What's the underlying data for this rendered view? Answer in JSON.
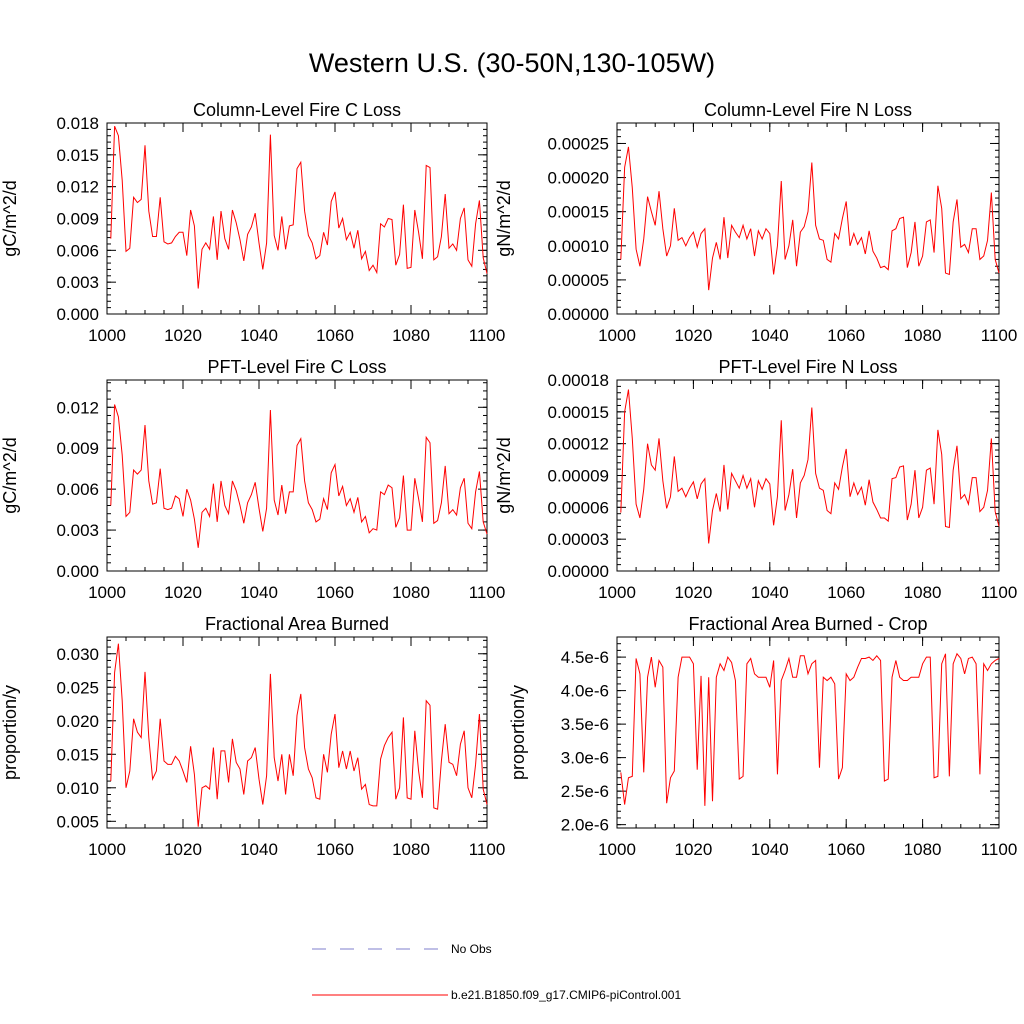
{
  "title": "Western U.S. (30-50N,130-105W)",
  "colors": {
    "model": "#ff0000",
    "obs": "#7f7fcc"
  },
  "legend": {
    "obs_label": "No Obs",
    "model_label": "b.e21.B1850.f09_g17.CMIP6-piControl.001"
  },
  "chart_data": [
    {
      "type": "line",
      "title": "Column-Level Fire C Loss",
      "ylabel": "gC/m^2/d",
      "xlim": [
        1000,
        1100
      ],
      "ylim": [
        0,
        0.018
      ],
      "xticks": [
        1000,
        1020,
        1040,
        1060,
        1080,
        1100
      ],
      "xtick_labels": [
        "1000",
        "1020",
        "1040",
        "1060",
        "1080",
        "1100"
      ],
      "yticks": [
        0,
        0.003,
        0.006,
        0.009,
        0.012,
        0.015,
        0.018
      ],
      "ytick_labels": [
        "0.000",
        "0.003",
        "0.006",
        "0.009",
        "0.012",
        "0.015",
        "0.018"
      ],
      "series": [
        {
          "x_start": 1001,
          "values": [
            0.0071,
            0.0177,
            0.0168,
            0.0126,
            0.0059,
            0.0062,
            0.011,
            0.0105,
            0.0108,
            0.0159,
            0.0097,
            0.0073,
            0.0073,
            0.011,
            0.0068,
            0.0066,
            0.0067,
            0.0073,
            0.0077,
            0.0077,
            0.0055,
            0.0098,
            0.0083,
            0.0024,
            0.0061,
            0.0067,
            0.0061,
            0.0092,
            0.0051,
            0.0097,
            0.0071,
            0.0061,
            0.0098,
            0.0086,
            0.007,
            0.005,
            0.0075,
            0.0082,
            0.0095,
            0.0067,
            0.0042,
            0.0067,
            0.0169,
            0.0074,
            0.006,
            0.0092,
            0.0061,
            0.0083,
            0.0084,
            0.0137,
            0.0143,
            0.0097,
            0.0074,
            0.0067,
            0.0052,
            0.0055,
            0.0077,
            0.0065,
            0.0106,
            0.0115,
            0.0081,
            0.009,
            0.007,
            0.0077,
            0.0062,
            0.0079,
            0.0052,
            0.0059,
            0.0041,
            0.0046,
            0.0039,
            0.0085,
            0.0082,
            0.009,
            0.0089,
            0.0046,
            0.0056,
            0.0103,
            0.0043,
            0.0044,
            0.0098,
            0.0077,
            0.0052,
            0.014,
            0.0138,
            0.0051,
            0.0054,
            0.0073,
            0.0113,
            0.0062,
            0.0066,
            0.006,
            0.009,
            0.01,
            0.0051,
            0.0045,
            0.0085,
            0.0107,
            0.0053,
            0.0038
          ]
        }
      ]
    },
    {
      "type": "line",
      "title": "Column-Level Fire N Loss",
      "ylabel": "gN/m^2/d",
      "xlim": [
        1000,
        1100
      ],
      "ylim": [
        0,
        0.00028
      ],
      "xticks": [
        1000,
        1020,
        1040,
        1060,
        1080,
        1100
      ],
      "xtick_labels": [
        "1000",
        "1020",
        "1040",
        "1060",
        "1080",
        "1100"
      ],
      "yticks": [
        0,
        5e-05,
        0.0001,
        0.00015,
        0.0002,
        0.00025
      ],
      "ytick_labels": [
        "0.00000",
        "0.00005",
        "0.00010",
        "0.00015",
        "0.00020",
        "0.00025"
      ],
      "series": [
        {
          "x_start": 1001,
          "values": [
            8e-05,
            0.000215,
            0.000245,
            0.000185,
            9.5e-05,
            7e-05,
            0.00011,
            0.000172,
            0.00015,
            0.00013,
            0.00018,
            0.000125,
            8.5e-05,
            0.0001,
            0.000155,
            0.000108,
            0.000112,
            0.0001,
            0.000112,
            0.00012,
            9.8e-05,
            0.000118,
            0.000125,
            3.5e-05,
            8.2e-05,
            0.000105,
            8e-05,
            0.000142,
            8.2e-05,
            0.00013,
            0.00012,
            0.000112,
            0.00013,
            0.00011,
            0.000125,
            8.5e-05,
            0.000122,
            0.00011,
            0.000125,
            0.000118,
            5.8e-05,
            0.0001,
            0.000195,
            8e-05,
            0.0001,
            0.000138,
            7e-05,
            0.00012,
            0.000128,
            0.00015,
            0.000222,
            0.00013,
            0.00011,
            0.000108,
            8e-05,
            7.6e-05,
            0.000118,
            0.00011,
            0.00014,
            0.000165,
            0.0001,
            0.000118,
            0.000102,
            0.000112,
            8.8e-05,
            0.000122,
            9.2e-05,
            8.2e-05,
            6.8e-05,
            7e-05,
            6.5e-05,
            0.000122,
            0.000125,
            0.00014,
            0.000142,
            6.8e-05,
            9e-05,
            0.000135,
            7e-05,
            8.5e-05,
            0.000135,
            0.000138,
            9e-05,
            0.000188,
            0.000155,
            6e-05,
            5.8e-05,
            0.000135,
            0.000168,
            9.8e-05,
            0.000102,
            9e-05,
            0.000125,
            0.000125,
            8e-05,
            8.5e-05,
            0.000108,
            0.000178,
            8e-05,
            6e-05
          ]
        }
      ]
    },
    {
      "type": "line",
      "title": "PFT-Level Fire C Loss",
      "ylabel": "gC/m^2/d",
      "xlim": [
        1000,
        1100
      ],
      "ylim": [
        0,
        0.014
      ],
      "xticks": [
        1000,
        1020,
        1040,
        1060,
        1080,
        1100
      ],
      "xtick_labels": [
        "1000",
        "1020",
        "1040",
        "1060",
        "1080",
        "1100"
      ],
      "yticks": [
        0,
        0.003,
        0.006,
        0.009,
        0.012
      ],
      "ytick_labels": [
        "0.000",
        "0.003",
        "0.006",
        "0.009",
        "0.012"
      ],
      "series": [
        {
          "x_start": 1001,
          "values": [
            0.0048,
            0.0122,
            0.0113,
            0.0085,
            0.004,
            0.0043,
            0.0074,
            0.0071,
            0.0074,
            0.0107,
            0.0066,
            0.0049,
            0.005,
            0.0075,
            0.0046,
            0.0045,
            0.0046,
            0.0055,
            0.0053,
            0.004,
            0.006,
            0.0052,
            0.0038,
            0.0017,
            0.0043,
            0.0046,
            0.004,
            0.0064,
            0.0036,
            0.0066,
            0.0048,
            0.0042,
            0.0066,
            0.0059,
            0.0048,
            0.0035,
            0.005,
            0.0056,
            0.0065,
            0.0046,
            0.0029,
            0.0046,
            0.0118,
            0.0052,
            0.0041,
            0.0063,
            0.0042,
            0.0058,
            0.0058,
            0.0092,
            0.0097,
            0.0066,
            0.005,
            0.0045,
            0.0036,
            0.0038,
            0.0053,
            0.0045,
            0.0072,
            0.0078,
            0.0055,
            0.0062,
            0.0048,
            0.0053,
            0.0043,
            0.0054,
            0.0036,
            0.004,
            0.0028,
            0.0031,
            0.003,
            0.0058,
            0.0056,
            0.0063,
            0.0061,
            0.0032,
            0.0039,
            0.007,
            0.003,
            0.003,
            0.0068,
            0.0053,
            0.0036,
            0.0098,
            0.0094,
            0.0035,
            0.0037,
            0.005,
            0.0077,
            0.0042,
            0.0045,
            0.0041,
            0.0061,
            0.0068,
            0.0035,
            0.0031,
            0.0058,
            0.0073,
            0.0036,
            0.0027
          ]
        }
      ]
    },
    {
      "type": "line",
      "title": "PFT-Level Fire N Loss",
      "ylabel": "gN/m^2/d",
      "xlim": [
        1000,
        1100
      ],
      "ylim": [
        0,
        0.00018
      ],
      "xticks": [
        1000,
        1020,
        1040,
        1060,
        1080,
        1100
      ],
      "xtick_labels": [
        "1000",
        "1020",
        "1040",
        "1060",
        "1080",
        "1100"
      ],
      "yticks": [
        0,
        3e-05,
        6e-05,
        9e-05,
        0.00012,
        0.00015,
        0.00018
      ],
      "ytick_labels": [
        "0.00000",
        "0.00003",
        "0.00006",
        "0.00009",
        "0.00012",
        "0.00015",
        "0.00018"
      ],
      "series": [
        {
          "x_start": 1001,
          "values": [
            5.5e-05,
            0.00015,
            0.000171,
            0.000125,
            6.3e-05,
            5e-05,
            7.7e-05,
            0.00012,
            0.0001,
            9.5e-05,
            0.000125,
            8.5e-05,
            5.9e-05,
            7e-05,
            0.000108,
            7.5e-05,
            7.8e-05,
            7e-05,
            7.8e-05,
            8.4e-05,
            6.8e-05,
            8.2e-05,
            8.7e-05,
            2.6e-05,
            5.7e-05,
            7.3e-05,
            5.6e-05,
            0.0001,
            5.8e-05,
            9.2e-05,
            8.5e-05,
            7.8e-05,
            9e-05,
            7.8e-05,
            8.7e-05,
            6e-05,
            8.5e-05,
            7.7e-05,
            8.7e-05,
            8.2e-05,
            4.3e-05,
            7e-05,
            0.000142,
            5.7e-05,
            7.2e-05,
            9.6e-05,
            5e-05,
            8.3e-05,
            9e-05,
            0.000105,
            0.000154,
            9.2e-05,
            7.8e-05,
            7.6e-05,
            5.7e-05,
            5.4e-05,
            8.3e-05,
            7.7e-05,
            9.8e-05,
            0.000115,
            7e-05,
            8.3e-05,
            7.2e-05,
            7.9e-05,
            6.2e-05,
            8.6e-05,
            6.5e-05,
            5.8e-05,
            5e-05,
            5e-05,
            4.7e-05,
            8.7e-05,
            8.8e-05,
            9.8e-05,
            9.9e-05,
            4.8e-05,
            6.3e-05,
            9.5e-05,
            5e-05,
            6e-05,
            9.5e-05,
            9.7e-05,
            6.3e-05,
            0.000133,
            0.00011,
            4.2e-05,
            4.1e-05,
            9.5e-05,
            0.000118,
            6.8e-05,
            7.2e-05,
            6.3e-05,
            8.8e-05,
            8.8e-05,
            5.6e-05,
            6e-05,
            7.6e-05,
            0.000125,
            5.6e-05,
            4.2e-05
          ]
        }
      ]
    },
    {
      "type": "line",
      "title": "Fractional Area Burned",
      "ylabel": "proportion/y",
      "xlim": [
        1000,
        1100
      ],
      "ylim": [
        0.004,
        0.0325
      ],
      "xticks": [
        1000,
        1020,
        1040,
        1060,
        1080,
        1100
      ],
      "xtick_labels": [
        "1000",
        "1020",
        "1040",
        "1060",
        "1080",
        "1100"
      ],
      "yticks": [
        0.005,
        0.01,
        0.015,
        0.02,
        0.025,
        0.03
      ],
      "ytick_labels": [
        "0.005",
        "0.010",
        "0.015",
        "0.020",
        "0.025",
        "0.030"
      ],
      "series": [
        {
          "x_start": 1001,
          "values": [
            0.011,
            0.0272,
            0.0315,
            0.023,
            0.01,
            0.0125,
            0.0203,
            0.0183,
            0.0175,
            0.0273,
            0.0175,
            0.0113,
            0.0125,
            0.0203,
            0.014,
            0.0135,
            0.0135,
            0.0147,
            0.014,
            0.0125,
            0.0108,
            0.0162,
            0.012,
            0.0042,
            0.01,
            0.0103,
            0.0098,
            0.016,
            0.0083,
            0.0155,
            0.0155,
            0.0108,
            0.0173,
            0.0138,
            0.0128,
            0.009,
            0.014,
            0.0145,
            0.016,
            0.0113,
            0.0075,
            0.0118,
            0.027,
            0.0145,
            0.011,
            0.015,
            0.009,
            0.015,
            0.0118,
            0.0208,
            0.024,
            0.016,
            0.0128,
            0.0115,
            0.0085,
            0.0083,
            0.015,
            0.0123,
            0.018,
            0.021,
            0.013,
            0.0155,
            0.0128,
            0.0155,
            0.0125,
            0.0145,
            0.0098,
            0.0105,
            0.0075,
            0.0073,
            0.0073,
            0.0143,
            0.0163,
            0.0175,
            0.0183,
            0.0083,
            0.01,
            0.0205,
            0.0085,
            0.0083,
            0.0185,
            0.0125,
            0.0085,
            0.023,
            0.0223,
            0.007,
            0.0068,
            0.014,
            0.0195,
            0.0138,
            0.0135,
            0.0118,
            0.0165,
            0.0185,
            0.01,
            0.0085,
            0.0135,
            0.021,
            0.0098,
            0.0075
          ]
        }
      ]
    },
    {
      "type": "line",
      "title": "Fractional Area Burned - Crop",
      "ylabel": "proportion/y",
      "xlim": [
        1000,
        1100
      ],
      "ylim": [
        1.95e-06,
        4.8e-06
      ],
      "xticks": [
        1000,
        1020,
        1040,
        1060,
        1080,
        1100
      ],
      "xtick_labels": [
        "1000",
        "1020",
        "1040",
        "1060",
        "1080",
        "1100"
      ],
      "yticks": [
        2e-06,
        2.5e-06,
        3e-06,
        3.5e-06,
        4e-06,
        4.5e-06
      ],
      "ytick_labels": [
        "2.0e-6",
        "2.5e-6",
        "3.0e-6",
        "3.5e-6",
        "4.0e-6",
        "4.5e-6"
      ],
      "series": [
        {
          "x_start": 1001,
          "values": [
            2.78e-06,
            2.3e-06,
            2.7e-06,
            2.72e-06,
            4.48e-06,
            4.25e-06,
            2.78e-06,
            4.2e-06,
            4.5e-06,
            4.05e-06,
            4.45e-06,
            4.35e-06,
            2.32e-06,
            2.7e-06,
            2.8e-06,
            4.2e-06,
            4.5e-06,
            4.5e-06,
            4.5e-06,
            4.4e-06,
            2.82e-06,
            4.22e-06,
            2.28e-06,
            4.2e-06,
            2.35e-06,
            4.2e-06,
            4.4e-06,
            4.3e-06,
            4.5e-06,
            4.42e-06,
            4.15e-06,
            2.68e-06,
            2.72e-06,
            4.4e-06,
            4.48e-06,
            4.25e-06,
            4.2e-06,
            4.2e-06,
            4.2e-06,
            4.05e-06,
            4.45e-06,
            2.75e-06,
            4.15e-06,
            4.3e-06,
            4.48e-06,
            4.2e-06,
            4.2e-06,
            4.52e-06,
            4.52e-06,
            4.25e-06,
            4.4e-06,
            4.45e-06,
            2.85e-06,
            4.2e-06,
            4.15e-06,
            4.2e-06,
            4.1e-06,
            2.68e-06,
            2.85e-06,
            4.25e-06,
            4.15e-06,
            4.2e-06,
            4.35e-06,
            4.48e-06,
            4.48e-06,
            4.5e-06,
            4.45e-06,
            4.52e-06,
            4.45e-06,
            2.65e-06,
            2.68e-06,
            4.2e-06,
            4.45e-06,
            4.2e-06,
            4.15e-06,
            4.15e-06,
            4.2e-06,
            4.2e-06,
            4.2e-06,
            4.4e-06,
            4.5e-06,
            4.5e-06,
            2.7e-06,
            2.72e-06,
            4.4e-06,
            4.55e-06,
            2.72e-06,
            4.4e-06,
            4.55e-06,
            4.48e-06,
            4.25e-06,
            4.48e-06,
            4.5e-06,
            4.4e-06,
            2.75e-06,
            4.4e-06,
            4.3e-06,
            4.4e-06,
            4.45e-06,
            4.48e-06
          ]
        }
      ]
    }
  ]
}
